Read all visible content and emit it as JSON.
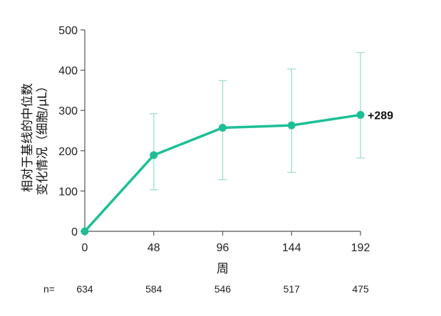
{
  "chart_data": {
    "type": "line",
    "x": [
      0,
      48,
      96,
      144,
      192
    ],
    "series": [
      {
        "values": [
          0,
          189,
          257,
          263,
          289
        ],
        "error_low": [
          0,
          103,
          128,
          146,
          182
        ],
        "error_high": [
          0,
          292,
          374,
          403,
          444
        ]
      }
    ],
    "xlabel": "周",
    "ylabel_line1": "相对于基线的中位数",
    "ylabel_line2": "变化情况（细胞/μL）",
    "ylim": [
      0,
      500
    ],
    "yticks": [
      0,
      100,
      200,
      300,
      400,
      500
    ],
    "xticks": [
      0,
      48,
      96,
      144,
      192
    ],
    "annotation": "+289",
    "n_label": "n=",
    "n_values": [
      "634",
      "584",
      "546",
      "517",
      "475"
    ],
    "grid": false,
    "colors": {
      "line": "#1cbf95",
      "error_bar": "#9fdfca",
      "axis": "#555555"
    }
  }
}
